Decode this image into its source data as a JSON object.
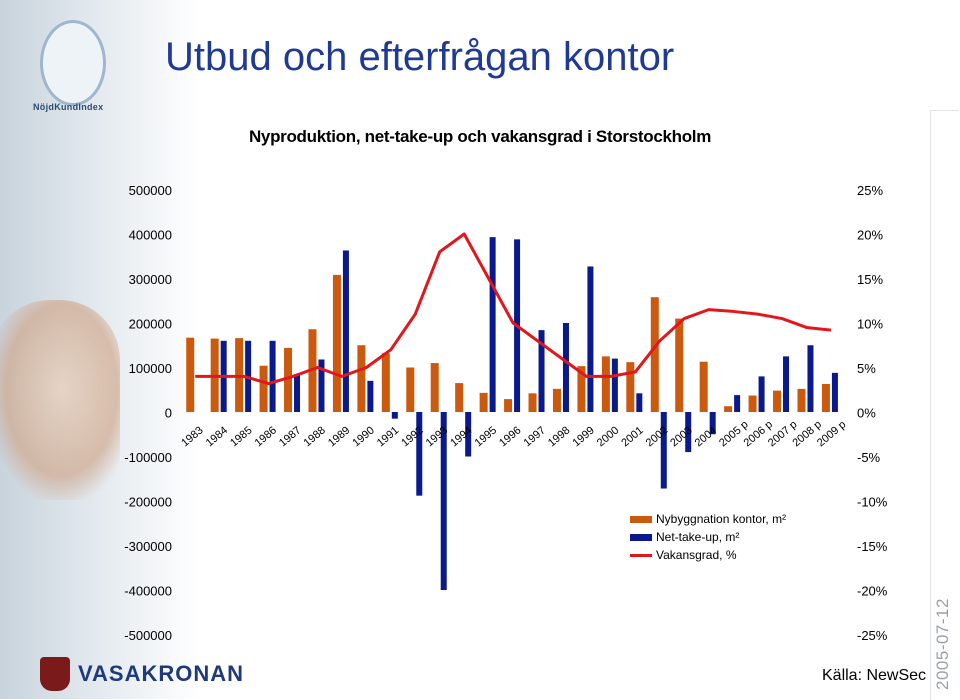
{
  "header": {
    "main_title": "Utbud och efterfrågan kontor",
    "logo_text": "NöjdKundIndex",
    "brand_text": "VASAKRONAN",
    "source": "Källa: NewSec",
    "date_stamp": "2005-07-12"
  },
  "colors": {
    "new_construction": "#cc5a0e",
    "net_take_up": "#0a1a8c",
    "vacancy": "#e3161b",
    "title": "#1f3a93"
  },
  "chart_data": {
    "type": "bar",
    "title": "Nyproduktion, net-take-up och vakansgrad i Storstockholm",
    "categories": [
      "1983",
      "1984",
      "1985",
      "1986",
      "1987",
      "1988",
      "1989",
      "1990",
      "1991",
      "1992",
      "1993",
      "1994",
      "1995",
      "1996",
      "1997",
      "1998",
      "1999",
      "2000",
      "2001",
      "2002",
      "2003",
      "2004",
      "2005 p",
      "2006 p",
      "2007 p",
      "2008 p",
      "2009 p"
    ],
    "series": [
      {
        "name": "Nybyggnation kontor, m²",
        "values": [
          167000,
          165000,
          166000,
          104000,
          144000,
          186000,
          308000,
          150000,
          132000,
          100000,
          110000,
          65000,
          43000,
          29000,
          42000,
          52000,
          103000,
          125000,
          112000,
          258000,
          210000,
          113000,
          13000,
          37000,
          48000,
          52000,
          63000
        ]
      },
      {
        "name": "Net-take-up, m²",
        "values": [
          null,
          160000,
          160000,
          160000,
          85000,
          118000,
          363000,
          70000,
          -15000,
          -188000,
          -400000,
          -100000,
          393000,
          388000,
          184000,
          200000,
          327000,
          120000,
          42000,
          -172000,
          -90000,
          -50000,
          38000,
          80000,
          125000,
          150000,
          88000
        ]
      },
      {
        "name": "Vakansgrad, %",
        "values": [
          4.0,
          4.0,
          4.0,
          3.2,
          4.0,
          5.0,
          4.0,
          5.0,
          7.0,
          11.0,
          18.0,
          20.0,
          15.0,
          10.0,
          8.0,
          6.0,
          4.0,
          4.0,
          4.5,
          8.0,
          10.5,
          11.5,
          11.3,
          11.0,
          10.5,
          9.5,
          9.2
        ]
      }
    ],
    "y_left": {
      "ticks": [
        "500000",
        "400000",
        "300000",
        "200000",
        "100000",
        "0",
        "-100000",
        "-200000",
        "-300000",
        "-400000",
        "-500000"
      ],
      "ylim": [
        -500000,
        500000
      ]
    },
    "y_right": {
      "ticks": [
        "25%",
        "20%",
        "15%",
        "10%",
        "5%",
        "0%",
        "-5%",
        "-10%",
        "-15%",
        "-20%",
        "-25%"
      ],
      "ylim": [
        -25,
        25
      ]
    },
    "grid": false,
    "legend_position": "bottom-right"
  }
}
